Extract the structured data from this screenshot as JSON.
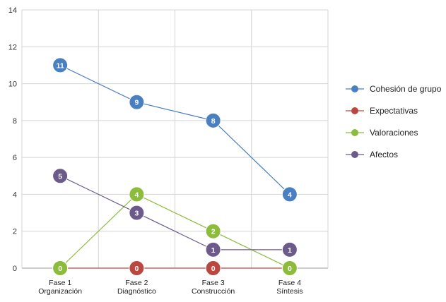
{
  "chart_data": {
    "type": "line",
    "categories": [
      [
        "Fase 1",
        "Organización"
      ],
      [
        "Fase 2",
        "Diagnóstico"
      ],
      [
        "Fase 3",
        "Construcción"
      ],
      [
        "Fase 4",
        "Síntesis"
      ]
    ],
    "ylim": [
      0,
      14
    ],
    "yticks": [
      0,
      2,
      4,
      6,
      8,
      10,
      12,
      14
    ],
    "grid": true,
    "legend_position": "right",
    "series": [
      {
        "name": "Cohesión de grupo",
        "values": [
          11,
          9,
          8,
          4
        ],
        "color": "#4a7fc1"
      },
      {
        "name": "Expectativas",
        "values": [
          0,
          0,
          0,
          0
        ],
        "color": "#b9473f"
      },
      {
        "name": "Valoraciones",
        "values": [
          0,
          4,
          2,
          0
        ],
        "color": "#8dbb3c"
      },
      {
        "name": "Afectos",
        "values": [
          5,
          3,
          1,
          1
        ],
        "color": "#6b5a8a"
      }
    ]
  }
}
